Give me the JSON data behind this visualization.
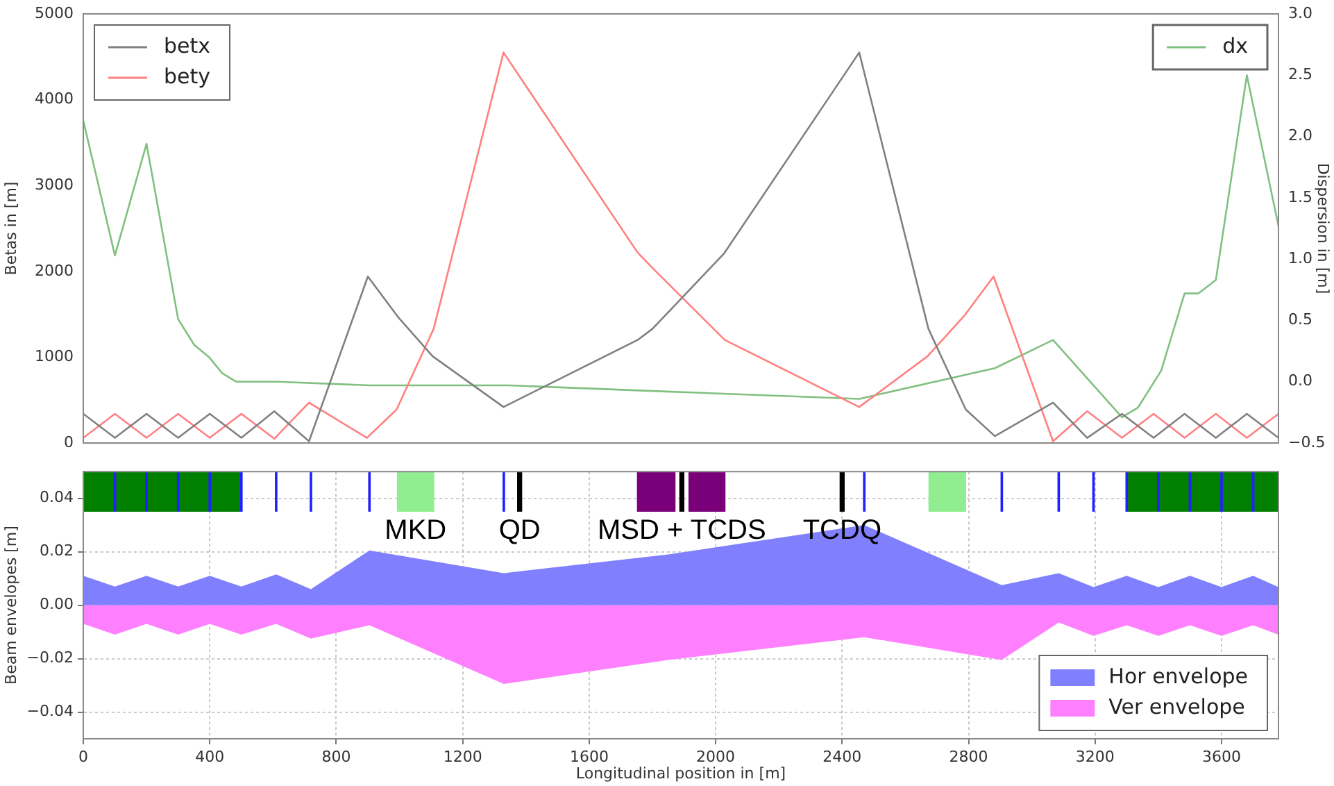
{
  "chart_data": [
    {
      "type": "line",
      "ylabel": "Betas in [m]",
      "y2label": "Dispersion in [m]",
      "xlim": [
        0,
        3780
      ],
      "xticks": [
        0,
        400,
        800,
        1200,
        1600,
        2000,
        2400,
        2800,
        3200,
        3600
      ],
      "ylim": [
        0,
        5000
      ],
      "yticks": [
        0,
        1000,
        2000,
        3000,
        4000,
        5000
      ],
      "y2lim": [
        -0.5,
        3.0
      ],
      "y2ticks": [
        {
          "value": -0.5,
          "label": "−0.5"
        },
        {
          "value": 0,
          "label": "0.0"
        },
        {
          "value": 0.5,
          "label": "0.5"
        },
        {
          "value": 1,
          "label": "1.0"
        },
        {
          "value": 1.5,
          "label": "1.5"
        },
        {
          "value": 2,
          "label": "2.0"
        },
        {
          "value": 2.5,
          "label": "2.5"
        },
        {
          "value": 3,
          "label": "3.0"
        }
      ],
      "tick_labels": "y",
      "grid": false,
      "legend": "top left",
      "series": [
        {
          "name": "betx",
          "color": "#808080",
          "x": [
            0,
            100,
            200,
            300,
            400,
            500,
            604,
            714,
            900,
            995,
            1105,
            1329,
            1753,
            1800,
            2027,
            2454,
            2673,
            2791,
            2883,
            3067,
            3175,
            3285,
            3385,
            3483,
            3582,
            3680,
            3780
          ],
          "values": [
            340,
            60,
            340,
            60,
            340,
            60,
            370,
            20,
            1940,
            1470,
            1010,
            420,
            1200,
            1330,
            2210,
            4550,
            1330,
            390,
            80,
            470,
            60,
            340,
            60,
            340,
            60,
            340,
            60
          ]
        },
        {
          "name": "bety",
          "color": "#ff8080",
          "x": [
            0,
            100,
            200,
            300,
            400,
            500,
            604,
            714,
            897,
            991,
            1108,
            1329,
            1753,
            1800,
            2029,
            2454,
            2670,
            2788,
            2879,
            3067,
            3175,
            3285,
            3385,
            3483,
            3582,
            3680,
            3780
          ],
          "values": [
            60,
            340,
            60,
            340,
            60,
            340,
            50,
            470,
            60,
            390,
            1330,
            4550,
            2220,
            2040,
            1200,
            420,
            1010,
            1490,
            1940,
            20,
            370,
            60,
            340,
            60,
            340,
            60,
            340
          ]
        },
        {
          "name": "dx",
          "color": "#80c080",
          "axis": "y2",
          "x": [
            0,
            100,
            200,
            300,
            351,
            398,
            439,
            483,
            615,
            907,
            1346,
            1844,
            2454,
            2883,
            3067,
            3285,
            3336,
            3409,
            3483,
            3527,
            3582,
            3680,
            3780
          ],
          "values": [
            2.13,
            1.03,
            1.94,
            0.51,
            0.3,
            0.2,
            0.07,
            0,
            0,
            -0.03,
            -0.03,
            -0.08,
            -0.14,
            0.11,
            0.34,
            -0.29,
            -0.21,
            0.09,
            0.72,
            0.72,
            0.83,
            2.5,
            1.27
          ]
        }
      ]
    },
    {
      "type": "area",
      "xlabel": "Longitudinal position in [m]",
      "ylabel": "Beam envelopes [m]",
      "xlim": [
        0,
        3780
      ],
      "xticks": [
        0,
        400,
        800,
        1200,
        1600,
        2000,
        2400,
        2800,
        3200,
        3600
      ],
      "ylim": [
        -0.05,
        0.05
      ],
      "yticks": [
        {
          "value": -0.04,
          "label": "−0.04"
        },
        {
          "value": -0.02,
          "label": "−0.02"
        },
        {
          "value": 0,
          "label": "0.00"
        },
        {
          "value": 0.02,
          "label": "0.02"
        },
        {
          "value": 0.04,
          "label": "0.04"
        }
      ],
      "grid": true,
      "legend": "bottom right",
      "x": [
        0,
        100,
        200,
        300,
        400,
        500,
        610,
        720,
        905,
        1330,
        1850,
        2470,
        2905,
        3085,
        3195,
        3300,
        3400,
        3500,
        3600,
        3700,
        3780
      ],
      "series": [
        {
          "name": "Hor envelope",
          "color": "#8080ff",
          "values": [
            0.011,
            0.007,
            0.011,
            0.007,
            0.011,
            0.007,
            0.0115,
            0.006,
            0.0205,
            0.012,
            0.019,
            0.03,
            0.0075,
            0.012,
            0.0068,
            0.011,
            0.0068,
            0.011,
            0.0068,
            0.011,
            0.0068
          ]
        },
        {
          "name": "Ver envelope",
          "color": "#ff80ff",
          "values": [
            -0.007,
            -0.011,
            -0.007,
            -0.011,
            -0.007,
            -0.011,
            -0.007,
            -0.0125,
            -0.0075,
            -0.0295,
            -0.0205,
            -0.012,
            -0.0205,
            -0.0065,
            -0.0115,
            -0.0075,
            -0.0115,
            -0.0075,
            -0.0115,
            -0.0075,
            -0.011
          ]
        }
      ],
      "bands": [
        {
          "axis": "x",
          "from": 0,
          "to": 500,
          "color": "#007f00"
        },
        {
          "axis": "x",
          "from": 3300,
          "to": 3780,
          "color": "#007f00"
        },
        {
          "axis": "x",
          "from": 992,
          "to": 1110,
          "color": "#90ee90",
          "label": "MKD"
        },
        {
          "axis": "x",
          "from": 2673,
          "to": 2792,
          "color": "#90ee90"
        },
        {
          "axis": "x",
          "from": 1751,
          "to": 1873,
          "color": "#7a007a"
        },
        {
          "axis": "x",
          "from": 1914,
          "to": 2031,
          "color": "#7a007a"
        },
        {
          "axis": "x",
          "from": 96,
          "to": 104,
          "color": "#2020ff"
        },
        {
          "axis": "x",
          "from": 196,
          "to": 204,
          "color": "#2020ff"
        },
        {
          "axis": "x",
          "from": 296,
          "to": 304,
          "color": "#2020ff"
        },
        {
          "axis": "x",
          "from": 396,
          "to": 404,
          "color": "#2020ff"
        },
        {
          "axis": "x",
          "from": 496,
          "to": 504,
          "color": "#2020ff"
        },
        {
          "axis": "x",
          "from": 606,
          "to": 614,
          "color": "#2020ff"
        },
        {
          "axis": "x",
          "from": 716,
          "to": 724,
          "color": "#2020ff"
        },
        {
          "axis": "x",
          "from": 901,
          "to": 909,
          "color": "#2020ff"
        },
        {
          "axis": "x",
          "from": 1326,
          "to": 1334,
          "color": "#2020ff"
        },
        {
          "axis": "x",
          "from": 2466,
          "to": 2474,
          "color": "#2020ff"
        },
        {
          "axis": "x",
          "from": 2901,
          "to": 2909,
          "color": "#2020ff"
        },
        {
          "axis": "x",
          "from": 3081,
          "to": 3089,
          "color": "#2020ff"
        },
        {
          "axis": "x",
          "from": 3191,
          "to": 3199,
          "color": "#2020ff"
        },
        {
          "axis": "x",
          "from": 3296,
          "to": 3304,
          "color": "#2020ff"
        },
        {
          "axis": "x",
          "from": 3396,
          "to": 3404,
          "color": "#2020ff"
        },
        {
          "axis": "x",
          "from": 3496,
          "to": 3504,
          "color": "#2020ff"
        },
        {
          "axis": "x",
          "from": 3596,
          "to": 3604,
          "color": "#2020ff"
        },
        {
          "axis": "x",
          "from": 3696,
          "to": 3704,
          "color": "#2020ff"
        },
        {
          "axis": "x",
          "from": 1372,
          "to": 1388,
          "color": "#000000",
          "label": "QD"
        },
        {
          "axis": "x",
          "from": 1885,
          "to": 1901,
          "color": "#000000",
          "label": "MSD + TCDS"
        },
        {
          "axis": "x",
          "from": 2392,
          "to": 2408,
          "color": "#000000",
          "label": "TCDQ"
        }
      ]
    }
  ]
}
